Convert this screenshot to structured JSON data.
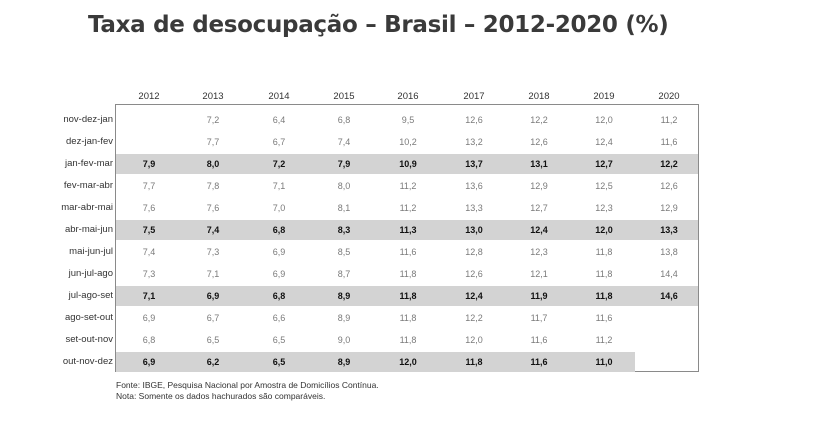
{
  "title": "Taxa de desocupação – Brasil – 2012-2020 (%)",
  "chart_data": {
    "type": "table",
    "title": "Taxa de desocupação – Brasil – 2012-2020 (%)",
    "columns": [
      "2012",
      "2013",
      "2014",
      "2015",
      "2016",
      "2017",
      "2018",
      "2019",
      "2020"
    ],
    "rows": [
      {
        "label": "nov-dez-jan",
        "bold": false,
        "values": [
          "",
          "7,2",
          "6,4",
          "6,8",
          "9,5",
          "12,6",
          "12,2",
          "12,0",
          "11,2"
        ]
      },
      {
        "label": "dez-jan-fev",
        "bold": false,
        "values": [
          "",
          "7,7",
          "6,7",
          "7,4",
          "10,2",
          "13,2",
          "12,6",
          "12,4",
          "11,6"
        ]
      },
      {
        "label": "jan-fev-mar",
        "bold": true,
        "values": [
          "7,9",
          "8,0",
          "7,2",
          "7,9",
          "10,9",
          "13,7",
          "13,1",
          "12,7",
          "12,2"
        ]
      },
      {
        "label": "fev-mar-abr",
        "bold": false,
        "values": [
          "7,7",
          "7,8",
          "7,1",
          "8,0",
          "11,2",
          "13,6",
          "12,9",
          "12,5",
          "12,6"
        ]
      },
      {
        "label": "mar-abr-mai",
        "bold": false,
        "values": [
          "7,6",
          "7,6",
          "7,0",
          "8,1",
          "11,2",
          "13,3",
          "12,7",
          "12,3",
          "12,9"
        ]
      },
      {
        "label": "abr-mai-jun",
        "bold": true,
        "values": [
          "7,5",
          "7,4",
          "6,8",
          "8,3",
          "11,3",
          "13,0",
          "12,4",
          "12,0",
          "13,3"
        ]
      },
      {
        "label": "mai-jun-jul",
        "bold": false,
        "values": [
          "7,4",
          "7,3",
          "6,9",
          "8,5",
          "11,6",
          "12,8",
          "12,3",
          "11,8",
          "13,8"
        ]
      },
      {
        "label": "jun-jul-ago",
        "bold": false,
        "values": [
          "7,3",
          "7,1",
          "6,9",
          "8,7",
          "11,8",
          "12,6",
          "12,1",
          "11,8",
          "14,4"
        ]
      },
      {
        "label": "jul-ago-set",
        "bold": true,
        "values": [
          "7,1",
          "6,9",
          "6,8",
          "8,9",
          "11,8",
          "12,4",
          "11,9",
          "11,8",
          "14,6"
        ]
      },
      {
        "label": "ago-set-out",
        "bold": false,
        "values": [
          "6,9",
          "6,7",
          "6,6",
          "8,9",
          "11,8",
          "12,2",
          "11,7",
          "11,6",
          ""
        ]
      },
      {
        "label": "set-out-nov",
        "bold": false,
        "values": [
          "6,8",
          "6,5",
          "6,5",
          "9,0",
          "11,8",
          "12,0",
          "11,6",
          "11,2",
          ""
        ]
      },
      {
        "label": "out-nov-dez",
        "bold": true,
        "values": [
          "6,9",
          "6,2",
          "6,5",
          "8,9",
          "12,0",
          "11,8",
          "11,6",
          "11,0",
          ""
        ]
      }
    ]
  },
  "footnotes": {
    "source": "Fonte: IBGE, Pesquisa Nacional por Amostra de Domicílios Contínua.",
    "note": "Nota: Somente os dados hachurados são comparáveis."
  },
  "colors": {
    "highlight_row": "#d3d3d3",
    "bold_text": "#111111",
    "normal_text": "#7a7a7a"
  }
}
